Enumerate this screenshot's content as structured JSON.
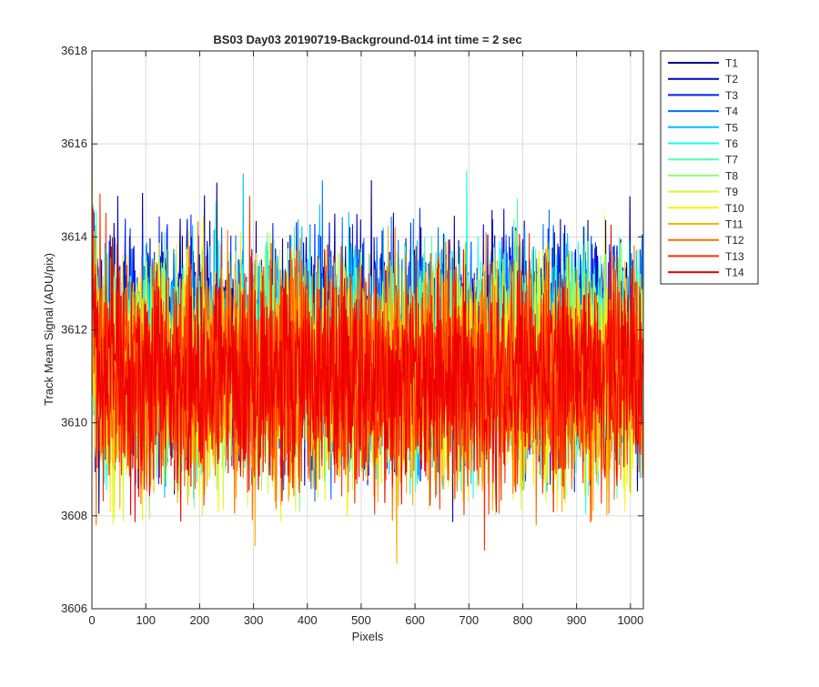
{
  "chart_data": {
    "type": "line",
    "title": "BS03 Day03 20190719-Background-014 int time = 2 sec",
    "xlabel": "Pixels",
    "ylabel": "Track Mean Signal (ADU/pix)",
    "xlim": [
      0,
      1024
    ],
    "ylim": [
      3606,
      3618
    ],
    "xticks": [
      0,
      100,
      200,
      300,
      400,
      500,
      600,
      700,
      800,
      900,
      1000
    ],
    "yticks": [
      3606,
      3608,
      3610,
      3612,
      3614,
      3616,
      3618
    ],
    "grid": true,
    "legend_position": "outside-top-right",
    "series": [
      {
        "name": "T1",
        "color": "#00008f",
        "mean": 3611.8,
        "amplitude": 1.5,
        "start": 3612.5
      },
      {
        "name": "T2",
        "color": "#0000c8",
        "mean": 3611.7,
        "amplitude": 1.5,
        "start": 3612.8
      },
      {
        "name": "T3",
        "color": "#0020ff",
        "mean": 3611.6,
        "amplitude": 1.5,
        "start": 3613.0
      },
      {
        "name": "T4",
        "color": "#0070ff",
        "mean": 3611.5,
        "amplitude": 1.5,
        "start": 3617.2
      },
      {
        "name": "T5",
        "color": "#00bfff",
        "mean": 3611.4,
        "amplitude": 1.5,
        "start": 3614.5
      },
      {
        "name": "T6",
        "color": "#10ffef",
        "mean": 3611.3,
        "amplitude": 1.5,
        "start": 3614.0
      },
      {
        "name": "T7",
        "color": "#50ffaf",
        "mean": 3611.2,
        "amplitude": 1.5,
        "start": 3615.0
      },
      {
        "name": "T8",
        "color": "#90ff70",
        "mean": 3611.1,
        "amplitude": 1.5,
        "start": 3616.8
      },
      {
        "name": "T9",
        "color": "#cfff30",
        "mean": 3611.1,
        "amplitude": 1.5,
        "start": 3614.2
      },
      {
        "name": "T10",
        "color": "#ffef00",
        "mean": 3611.0,
        "amplitude": 1.5,
        "start": 3615.5
      },
      {
        "name": "T11",
        "color": "#ffb000",
        "mean": 3611.0,
        "amplitude": 1.5,
        "start": 3613.5
      },
      {
        "name": "T12",
        "color": "#ff7000",
        "mean": 3611.0,
        "amplitude": 1.5,
        "start": 3616.1
      },
      {
        "name": "T13",
        "color": "#ff3000",
        "mean": 3611.0,
        "amplitude": 1.5,
        "start": 3614.8
      },
      {
        "name": "T14",
        "color": "#ef0000",
        "mean": 3611.0,
        "amplitude": 1.5,
        "start": 3613.8
      }
    ],
    "points_per_series": 1024
  }
}
